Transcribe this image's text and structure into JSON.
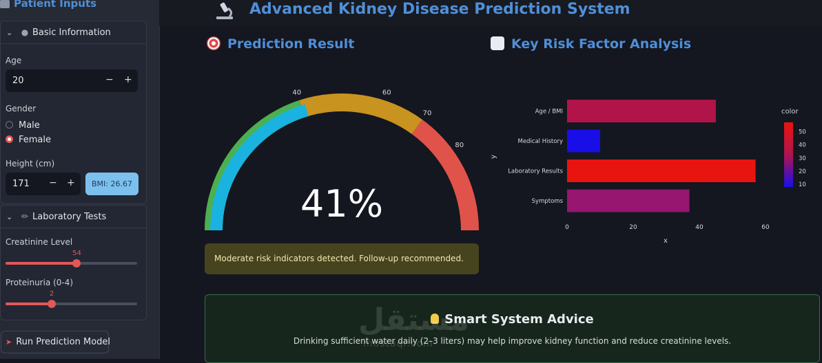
{
  "app": {
    "title": "Advanced Kidney Disease Prediction System",
    "accent": "#4f8fd8"
  },
  "sidebar": {
    "title": "Patient Inputs",
    "basic_info": {
      "header": "Basic Information",
      "age_label": "Age",
      "age_value": "20",
      "gender_label": "Gender",
      "gender_options": [
        "Male",
        "Female"
      ],
      "gender_selected": "Female",
      "height_label": "Height (cm)",
      "height_value": "171",
      "bmi_badge": "BMI: 26.67",
      "minus": "−",
      "plus": "+"
    },
    "lab_tests": {
      "header": "Laboratory Tests",
      "creatinine_label": "Creatinine Level",
      "creatinine_value": "54",
      "creatinine_fraction": 0.54,
      "proteinuria_label": "Proteinuria (0-4)",
      "proteinuria_value": "2",
      "proteinuria_fraction": 0.35
    },
    "run_button": "Run Prediction Model"
  },
  "prediction": {
    "header": "Prediction Result",
    "value_text": "41%",
    "value": 41,
    "gauge_ticks": [
      "40",
      "60",
      "70",
      "80"
    ],
    "bands": [
      {
        "from": 0,
        "to": 40,
        "color": "#4caf50"
      },
      {
        "from": 40,
        "to": 70,
        "color": "#c9931f"
      },
      {
        "from": 70,
        "to": 100,
        "color": "#e0534a"
      }
    ],
    "bar_color": "#1ab3e0",
    "alert": "Moderate risk indicators detected. Follow-up recommended."
  },
  "risk": {
    "header": "Key Risk Factor Analysis"
  },
  "chart_data": {
    "type": "bar",
    "orientation": "horizontal",
    "categories": [
      "Age / BMI",
      "Medical History",
      "Laboratory Results",
      "Symptoms"
    ],
    "values": [
      45,
      10,
      57,
      37
    ],
    "xlabel": "x",
    "ylabel": "y",
    "xticks": [
      "0",
      "20",
      "40",
      "60"
    ],
    "xlim": [
      0,
      60
    ],
    "colorbar": {
      "title": "color",
      "ticks": [
        "50",
        "40",
        "30",
        "20",
        "10"
      ],
      "range": [
        8,
        57
      ],
      "colors": [
        "#e8140f",
        "#b01450",
        "#1a0ee8"
      ]
    },
    "bar_colors": [
      "#b01449",
      "#1a0ee8",
      "#e8140f",
      "#961670"
    ]
  },
  "advice": {
    "title": "Smart System Advice",
    "text": "Drinking sufficient water daily (2–3 liters) may help improve kidney function and reduce creatinine levels."
  },
  "watermark": {
    "arabic": "مستقل",
    "latin": "mostaqi.com"
  }
}
